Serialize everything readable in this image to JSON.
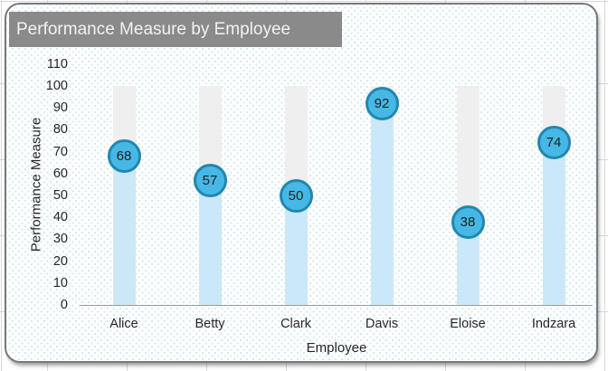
{
  "chart_data": {
    "type": "bar",
    "title": "Performance Measure by Employee",
    "xlabel": "Employee",
    "ylabel": "Performance Measure",
    "categories": [
      "Alice",
      "Betty",
      "Clark",
      "Davis",
      "Eloise",
      "Indzara"
    ],
    "values": [
      68,
      57,
      50,
      92,
      38,
      74
    ],
    "track_max": 100,
    "ylim": [
      0,
      110
    ],
    "ytick_step": 10,
    "ytick_labels": [
      "0",
      "10",
      "20",
      "30",
      "40",
      "50",
      "60",
      "70",
      "80",
      "90",
      "100",
      "110"
    ],
    "grid": false,
    "legend": false,
    "data_labels": "value inside circular marker at bar top",
    "colors": {
      "marker_fill": "#47b8e6",
      "marker_border": "#2187ae",
      "bar_fill": "#cbe8f8",
      "track_fill": "#efefef",
      "title_bg": "#8a8a8a",
      "title_fg": "#f2f2f2",
      "axis_line": "#9d9d9d",
      "text": "#262626",
      "dot_pattern": "#cfe8f2",
      "sheet_grid": "#d8d8d8"
    }
  }
}
